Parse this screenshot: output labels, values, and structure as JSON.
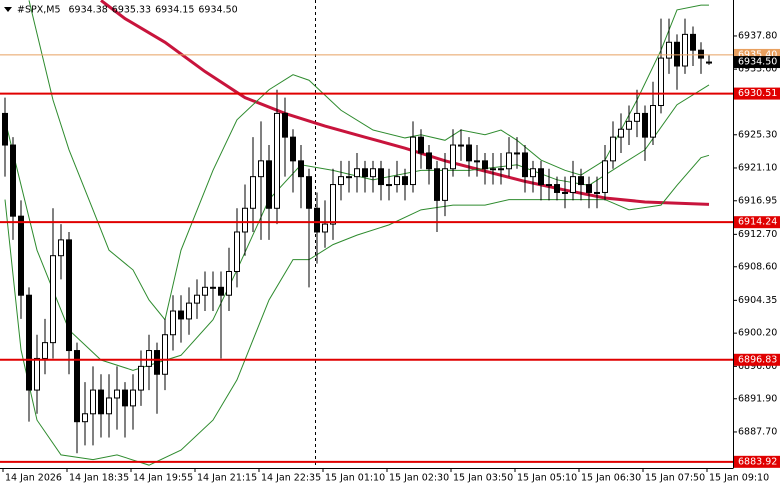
{
  "chart_data": {
    "type": "candlestick",
    "title": "#SPX,M5",
    "header_values": [
      "6934.38",
      "6935.33",
      "6934.15",
      "6934.50"
    ],
    "categories": [
      "14 Jan 2026",
      null,
      null,
      null,
      null,
      null,
      null,
      null,
      "14 Jan 18:35",
      null,
      null,
      null,
      null,
      null,
      null,
      null,
      "14 Jan 19:55",
      null,
      null,
      null,
      null,
      null,
      null,
      null,
      "14 Jan 21:15",
      null,
      null,
      null,
      null,
      null,
      null,
      null,
      "14 Jan 22:35",
      null,
      null,
      null,
      null,
      null,
      null,
      null,
      "15 Jan 01:10",
      null,
      null,
      null,
      null,
      null,
      null,
      null,
      "15 Jan 02:30",
      null,
      null,
      null,
      null,
      null,
      null,
      null,
      "15 Jan 03:50",
      null,
      null,
      null,
      null,
      null,
      null,
      null,
      "15 Jan 05:10",
      null,
      null,
      null,
      null,
      null,
      null,
      null,
      "15 Jan 06:30",
      null,
      null,
      null,
      null,
      null,
      null,
      null,
      "15 Jan 07:50",
      null,
      null,
      null,
      null,
      null,
      null,
      null,
      "15 Jan 09:10"
    ],
    "open": [
      6928,
      6924,
      6915,
      6905,
      6893,
      6897,
      6899,
      6910,
      6912,
      6898,
      6889,
      6890,
      6893,
      6890,
      6892,
      6893,
      6891,
      6893,
      6896,
      6898,
      6895,
      6900,
      6903,
      6902,
      6904,
      6905,
      6906,
      6906,
      6905,
      6908,
      6913,
      6916,
      6920,
      6922,
      6916,
      6928,
      6925,
      6922,
      6920,
      6916,
      6913,
      6914,
      6919,
      6920,
      6920,
      6921,
      6920,
      6921,
      6919,
      6919,
      6920,
      6919,
      6925,
      6923,
      6921,
      6917,
      6921,
      6924,
      6924,
      6922,
      6922,
      6921,
      6921,
      6921,
      6923,
      6923,
      6920,
      6921,
      6919,
      6919,
      6918,
      6918,
      6920,
      6919,
      6918,
      6918,
      6922,
      6925,
      6926,
      6927,
      6928,
      6925,
      6929,
      6935,
      6937,
      6934,
      6938,
      6936,
      6934.38
    ],
    "high": [
      6930,
      6925,
      6917,
      6906,
      6900,
      6902,
      6916,
      6914,
      6913,
      6899,
      6894,
      6896,
      6895,
      6895,
      6896,
      6894,
      6895,
      6898,
      6900,
      6899,
      6902,
      6905,
      6905,
      6906,
      6907,
      6908,
      6908,
      6908,
      6911,
      6916,
      6919,
      6925,
      6927,
      6924,
      6931,
      6930,
      6926,
      6924,
      6921,
      6918,
      6917,
      6921,
      6922,
      6922,
      6923,
      6922,
      6922,
      6922,
      6921,
      6922,
      6921,
      6927,
      6926,
      6924,
      6922,
      6923,
      6926,
      6926,
      6925,
      6924,
      6923,
      6923,
      6923,
      6925,
      6925,
      6924,
      6922,
      6922,
      6921,
      6920,
      6920,
      6922,
      6921,
      6920,
      6920,
      6924,
      6927,
      6928,
      6929,
      6931,
      6929,
      6932,
      6940,
      6940,
      6938,
      6940,
      6939,
      6937,
      6935.33
    ],
    "low": [
      6920,
      6912,
      6902,
      6889,
      6890,
      6895,
      6897,
      6907,
      6895,
      6885,
      6886,
      6886,
      6887,
      6887,
      6888,
      6887,
      6888,
      6891,
      6893,
      6890,
      6893,
      6898,
      6899,
      6900,
      6902,
      6903,
      6903,
      6897,
      6903,
      6906,
      6910,
      6913,
      6912,
      6912,
      6914,
      6920,
      6918,
      6916,
      6906,
      6909,
      6911,
      6912,
      6917,
      6918,
      6918,
      6918,
      6918,
      6917,
      6917,
      6918,
      6917,
      6918,
      6921,
      6919,
      6913,
      6915,
      6920,
      6922,
      6920,
      6920,
      6919,
      6919,
      6919,
      6920,
      6921,
      6918,
      6918,
      6917,
      6917,
      6917,
      6916,
      6917,
      6917,
      6916,
      6916,
      6917,
      6921,
      6923,
      6924,
      6925,
      6922,
      6924,
      6928,
      6933,
      6931,
      6933,
      6934,
      6933,
      6934.15
    ],
    "close": [
      6924,
      6915,
      6905,
      6893,
      6897,
      6899,
      6910,
      6912,
      6898,
      6889,
      6890,
      6893,
      6890,
      6892,
      6893,
      6891,
      6893,
      6896,
      6898,
      6895,
      6900,
      6903,
      6902,
      6904,
      6905,
      6906,
      6906,
      6905,
      6908,
      6913,
      6916,
      6920,
      6922,
      6916,
      6928,
      6925,
      6922,
      6920,
      6916,
      6913,
      6914,
      6919,
      6920,
      6920,
      6921,
      6920,
      6921,
      6919,
      6919,
      6920,
      6919,
      6925,
      6923,
      6921,
      6917,
      6921,
      6924,
      6924,
      6922,
      6922,
      6921,
      6921,
      6921,
      6923,
      6923,
      6920,
      6921,
      6919,
      6919,
      6918,
      6918,
      6920,
      6919,
      6918,
      6918,
      6922,
      6925,
      6926,
      6927,
      6928,
      6925,
      6929,
      6935,
      6937,
      6934,
      6938,
      6936,
      6935,
      6934.5
    ],
    "up_color": "#ffffff",
    "down_color": "#000000",
    "series": [
      {
        "color": "#c8143c",
        "width": 3,
        "x": [
          12,
          15,
          20,
          25,
          30,
          35,
          40,
          45,
          50,
          55,
          60,
          65,
          70,
          75,
          80,
          88
        ],
        "values": [
          6942.3,
          6940,
          6937,
          6933.3,
          6930,
          6928,
          6926.4,
          6925,
          6923.6,
          6922,
          6920.7,
          6919.4,
          6918.3,
          6917.3,
          6916.8,
          6916.5
        ]
      },
      {
        "color": "#2e8b2e",
        "width": 1,
        "x": [
          3,
          6,
          8,
          11,
          13,
          16,
          18,
          20,
          22,
          26,
          29,
          33,
          36,
          38,
          42,
          46,
          50,
          52,
          55,
          57,
          60,
          62,
          64,
          67,
          70,
          72,
          75,
          77,
          79,
          82,
          84,
          87,
          88
        ],
        "values": [
          6942.3,
          6929.7,
          6923.4,
          6915.8,
          6910.7,
          6908.2,
          6904.4,
          6901.9,
          6910.7,
          6920.8,
          6927.2,
          6931,
          6932.9,
          6932.2,
          6928.4,
          6925.9,
          6924.9,
          6925.3,
          6924.6,
          6925.9,
          6925.3,
          6925.9,
          6924.6,
          6922.1,
          6920.8,
          6920.2,
          6922.1,
          6925.9,
          6929.7,
          6936,
          6941.1,
          6941.7,
          6941.7
        ]
      },
      {
        "color": "#2e8b2e",
        "width": 1,
        "x": [
          0,
          4,
          8,
          12,
          16,
          22,
          26,
          29,
          33,
          37,
          41,
          46,
          52,
          58,
          64,
          69,
          73,
          77,
          80,
          84,
          88
        ],
        "values": [
          6927.2,
          6910.7,
          6900.6,
          6896.8,
          6895.5,
          6897.4,
          6901.9,
          6908.2,
          6917.1,
          6921.5,
          6920.8,
          6919.6,
          6920.8,
          6920.8,
          6921.5,
          6919.6,
          6918.9,
          6921.5,
          6923.4,
          6929.1,
          6931.6
        ]
      },
      {
        "color": "#2e8b2e",
        "width": 1,
        "x": [
          0,
          2,
          4,
          7,
          11,
          14,
          18,
          22,
          26,
          29,
          33,
          36,
          38,
          41,
          44,
          48,
          52,
          56,
          60,
          63,
          67,
          70,
          75,
          78,
          82,
          84,
          87,
          88
        ],
        "values": [
          6917.1,
          6898.1,
          6889.2,
          6884.8,
          6884.2,
          6884.8,
          6883.5,
          6885.4,
          6889.2,
          6894.3,
          6904.4,
          6909.5,
          6909.5,
          6911.4,
          6912.6,
          6913.9,
          6915.8,
          6916.4,
          6916.4,
          6917.1,
          6917.1,
          6917.1,
          6917.1,
          6915.8,
          6916.4,
          6918.9,
          6922.4,
          6922.7
        ]
      }
    ],
    "ylim": [
      6883.14,
      6942.35
    ],
    "yticks": [
      {
        "value": 6937.8,
        "label": "6937.80"
      },
      {
        "value": 6933.6,
        "label": "6933.60"
      },
      {
        "value": 6925.3,
        "label": "6925.30"
      },
      {
        "value": 6921.1,
        "label": "6921.10"
      },
      {
        "value": 6916.95,
        "label": "6916.95"
      },
      {
        "value": 6912.7,
        "label": "6912.70"
      },
      {
        "value": 6908.6,
        "label": "6908.60"
      },
      {
        "value": 6904.35,
        "label": "6904.35"
      },
      {
        "value": 6900.2,
        "label": "6900.20"
      },
      {
        "value": 6896,
        "label": "6896.00"
      },
      {
        "value": 6891.9,
        "label": "6891.90"
      },
      {
        "value": 6887.7,
        "label": "6887.70"
      }
    ],
    "levels": [
      {
        "value": 6935.4,
        "label": "6935.40",
        "color": "#e8a060",
        "width": 1
      },
      {
        "value": 6930.51,
        "label": "6930.51",
        "color": "#e00000",
        "width": 2
      },
      {
        "value": 6914.24,
        "label": "6914.24",
        "color": "#e00000",
        "width": 2
      },
      {
        "value": 6896.83,
        "label": "6896.83",
        "color": "#e00000",
        "width": 2
      },
      {
        "value": 6883.92,
        "label": "6883.92",
        "color": "#e00000",
        "width": 2
      }
    ],
    "bid": {
      "value": 6934.5,
      "label": "6934.50",
      "color": "#000000"
    }
  }
}
